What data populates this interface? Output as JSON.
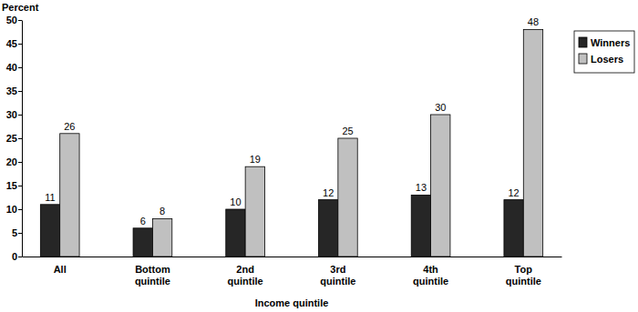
{
  "chart_data": {
    "type": "bar",
    "y_label": "Percent",
    "x_label": "Income quintile",
    "categories": [
      "All",
      "Bottom quintile",
      "2nd quintile",
      "3rd quintile",
      "4th quintile",
      "Top quintile"
    ],
    "series": [
      {
        "name": "Winners",
        "color": "#262626",
        "values": [
          11,
          6,
          10,
          12,
          13,
          12
        ]
      },
      {
        "name": "Losers",
        "color": "#c0c0c0",
        "values": [
          26,
          8,
          19,
          25,
          30,
          48
        ]
      }
    ],
    "ylim": [
      0,
      50
    ],
    "yticks": [
      0,
      5,
      10,
      15,
      20,
      25,
      30,
      35,
      40,
      45,
      50
    ],
    "grid": false,
    "data_labels": true,
    "legend": "right"
  }
}
